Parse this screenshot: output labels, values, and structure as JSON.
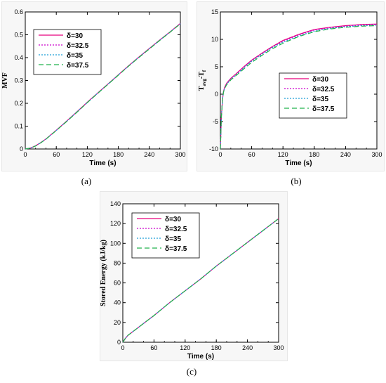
{
  "chart_data": [
    {
      "id": "a",
      "type": "line",
      "caption": "(a)",
      "xlabel": "Time (s)",
      "ylabel": "MVF",
      "ylabel_sub": "",
      "xlim": [
        0,
        300
      ],
      "ylim": [
        0,
        0.6
      ],
      "xticks": [
        0,
        60,
        120,
        180,
        240,
        300
      ],
      "yticks": [
        0,
        0.1,
        0.2,
        0.3,
        0.4,
        0.5,
        0.6
      ],
      "ytick_labels": [
        "0",
        "0.1",
        "0.2",
        "0.3",
        "0.4",
        "0.5",
        "0.6"
      ],
      "legend_position": "top-left",
      "series": [
        {
          "name": "δ=30",
          "color": "#e6007e",
          "dash": "solid",
          "x": [
            0,
            10,
            20,
            30,
            40,
            60,
            80,
            100,
            120,
            140,
            160,
            180,
            200,
            220,
            240,
            260,
            280,
            300
          ],
          "y": [
            0,
            0.004,
            0.014,
            0.028,
            0.044,
            0.082,
            0.122,
            0.163,
            0.205,
            0.245,
            0.285,
            0.325,
            0.365,
            0.403,
            0.44,
            0.477,
            0.513,
            0.55
          ]
        },
        {
          "name": "δ=32.5",
          "color": "#cc00cc",
          "dash": "dot",
          "x": [
            0,
            10,
            20,
            30,
            40,
            60,
            80,
            100,
            120,
            140,
            160,
            180,
            200,
            220,
            240,
            260,
            280,
            300
          ],
          "y": [
            0,
            0.004,
            0.014,
            0.028,
            0.044,
            0.082,
            0.121,
            0.162,
            0.204,
            0.244,
            0.284,
            0.324,
            0.364,
            0.402,
            0.439,
            0.476,
            0.512,
            0.549
          ]
        },
        {
          "name": "δ=35",
          "color": "#1f9fd6",
          "dash": "dot",
          "x": [
            0,
            10,
            20,
            30,
            40,
            60,
            80,
            100,
            120,
            140,
            160,
            180,
            200,
            220,
            240,
            260,
            280,
            300
          ],
          "y": [
            0,
            0.004,
            0.013,
            0.027,
            0.043,
            0.081,
            0.121,
            0.162,
            0.203,
            0.244,
            0.284,
            0.324,
            0.363,
            0.402,
            0.439,
            0.476,
            0.512,
            0.549
          ]
        },
        {
          "name": "δ=37.5",
          "color": "#22b24c",
          "dash": "dash",
          "x": [
            0,
            10,
            20,
            30,
            40,
            60,
            80,
            100,
            120,
            140,
            160,
            180,
            200,
            220,
            240,
            260,
            280,
            300
          ],
          "y": [
            0,
            0.004,
            0.013,
            0.027,
            0.043,
            0.081,
            0.12,
            0.161,
            0.203,
            0.243,
            0.283,
            0.323,
            0.363,
            0.401,
            0.438,
            0.475,
            0.511,
            0.548
          ]
        }
      ]
    },
    {
      "id": "b",
      "type": "line",
      "caption": "(b)",
      "xlabel": "Time (s)",
      "ylabel": "T",
      "ylabel_sub": "avg",
      "ylabel_rest": "-T",
      "ylabel_sub2": "f",
      "xlim": [
        0,
        300
      ],
      "ylim": [
        -10,
        15
      ],
      "xticks": [
        0,
        60,
        120,
        180,
        240,
        300
      ],
      "yticks": [
        -10,
        -5,
        0,
        5,
        10,
        15
      ],
      "ytick_labels": [
        "-10",
        "-5",
        "0",
        "5",
        "10",
        "15"
      ],
      "legend_position": "center-right",
      "series": [
        {
          "name": "δ=30",
          "color": "#e6007e",
          "dash": "solid",
          "x": [
            0,
            2,
            4,
            6,
            8,
            12,
            20,
            30,
            45,
            60,
            80,
            100,
            120,
            150,
            180,
            210,
            240,
            270,
            300
          ],
          "y": [
            -10,
            -4,
            -1,
            0.5,
            1.2,
            2.0,
            2.9,
            3.7,
            5.0,
            6.2,
            7.5,
            8.7,
            9.8,
            10.9,
            11.8,
            12.2,
            12.5,
            12.7,
            12.8
          ]
        },
        {
          "name": "δ=32.5",
          "color": "#cc00cc",
          "dash": "dot",
          "x": [
            0,
            2,
            4,
            6,
            8,
            12,
            20,
            30,
            45,
            60,
            80,
            100,
            120,
            150,
            180,
            210,
            240,
            270,
            300
          ],
          "y": [
            -10,
            -4,
            -1,
            0.5,
            1.1,
            1.9,
            2.8,
            3.6,
            4.9,
            6.1,
            7.4,
            8.6,
            9.6,
            10.8,
            11.7,
            12.1,
            12.4,
            12.6,
            12.7
          ]
        },
        {
          "name": "δ=35",
          "color": "#1f9fd6",
          "dash": "dot",
          "x": [
            0,
            2,
            4,
            6,
            8,
            12,
            20,
            30,
            45,
            60,
            80,
            100,
            120,
            150,
            180,
            210,
            240,
            270,
            300
          ],
          "y": [
            -10,
            -4,
            -1,
            0.4,
            1.0,
            1.8,
            2.7,
            3.5,
            4.8,
            6.0,
            7.3,
            8.5,
            9.5,
            10.6,
            11.5,
            12.0,
            12.3,
            12.5,
            12.6
          ]
        },
        {
          "name": "δ=37.5",
          "color": "#22b24c",
          "dash": "dash",
          "x": [
            0,
            2,
            4,
            6,
            8,
            12,
            20,
            30,
            45,
            60,
            80,
            100,
            120,
            150,
            180,
            210,
            240,
            270,
            300
          ],
          "y": [
            -10,
            -4,
            -1,
            0.4,
            1.0,
            1.7,
            2.6,
            3.4,
            4.6,
            5.8,
            7.1,
            8.3,
            9.3,
            10.5,
            11.4,
            11.9,
            12.2,
            12.4,
            12.5
          ]
        }
      ]
    },
    {
      "id": "c",
      "type": "line",
      "caption": "(c)",
      "xlabel": "Time (s)",
      "ylabel": "Stored Energy (kJ/kg)",
      "ylabel_sub": "",
      "xlim": [
        0,
        300
      ],
      "ylim": [
        0,
        140
      ],
      "xticks": [
        0,
        60,
        120,
        180,
        240,
        300
      ],
      "yticks": [
        0,
        20,
        40,
        60,
        80,
        100,
        120,
        140
      ],
      "ytick_labels": [
        "0",
        "20",
        "40",
        "60",
        "80",
        "100",
        "120",
        "140"
      ],
      "legend_position": "top-left",
      "series": [
        {
          "name": "δ=30",
          "color": "#e6007e",
          "dash": "solid",
          "x": [
            0,
            5,
            10,
            20,
            30,
            45,
            60,
            90,
            120,
            150,
            180,
            210,
            240,
            270,
            300
          ],
          "y": [
            0,
            4,
            7,
            11,
            15,
            21,
            27,
            40,
            52,
            64,
            77,
            89,
            101,
            113,
            125
          ]
        },
        {
          "name": "δ=32.5",
          "color": "#cc00cc",
          "dash": "dot",
          "x": [
            0,
            5,
            10,
            20,
            30,
            45,
            60,
            90,
            120,
            150,
            180,
            210,
            240,
            270,
            300
          ],
          "y": [
            0,
            4,
            7,
            11,
            15,
            21,
            27,
            40,
            52,
            64,
            77,
            89,
            101,
            113,
            125
          ]
        },
        {
          "name": "δ=35",
          "color": "#1f9fd6",
          "dash": "dot",
          "x": [
            0,
            5,
            10,
            20,
            30,
            45,
            60,
            90,
            120,
            150,
            180,
            210,
            240,
            270,
            300
          ],
          "y": [
            0,
            4,
            7,
            11,
            15,
            21,
            27,
            40,
            52,
            64,
            77,
            89,
            101,
            113,
            125
          ]
        },
        {
          "name": "δ=37.5",
          "color": "#22b24c",
          "dash": "dash",
          "x": [
            0,
            5,
            10,
            20,
            30,
            45,
            60,
            90,
            120,
            150,
            180,
            210,
            240,
            270,
            300
          ],
          "y": [
            0,
            4,
            7,
            11,
            15,
            21,
            27,
            40,
            52,
            64,
            77,
            89,
            101,
            113,
            125
          ]
        }
      ]
    }
  ]
}
